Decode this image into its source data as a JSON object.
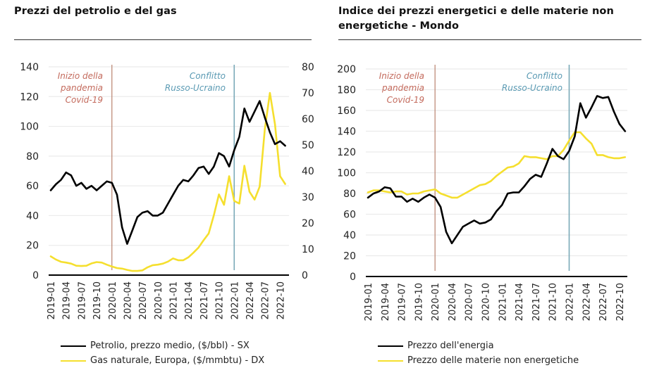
{
  "colors": {
    "oil": "#000000",
    "gas": "#f5df2e",
    "energy": "#000000",
    "non_energy": "#f5df2e",
    "covid_line": "#b9826e",
    "covid_text": "#c36a5c",
    "conflict_line": "#7aa9b8",
    "conflict_text": "#5a9ab3",
    "grid": "#ebebeb",
    "axis": "#000000"
  },
  "chart_data": [
    {
      "type": "line",
      "title": "Prezzi del petrolio e del gas",
      "xlabel": "",
      "ylabel": "",
      "ylim": [
        0,
        140
      ],
      "ylim_right": [
        0,
        80
      ],
      "yticks": [
        0,
        20,
        40,
        60,
        80,
        100,
        120,
        140
      ],
      "yticks_right": [
        0,
        10,
        20,
        30,
        40,
        50,
        60,
        70,
        80
      ],
      "grid": true,
      "legend_position": "bottom",
      "x_tick_labels": [
        "2019-01",
        "2019-04",
        "2019-07",
        "2019-10",
        "2020-01",
        "2020-04",
        "2020-07",
        "2020-10",
        "2021-01",
        "2021-04",
        "2021-07",
        "2021-10",
        "2022-01",
        "2022-04",
        "2022-07",
        "2022-10"
      ],
      "annotations": [
        {
          "text": [
            "Inizio della",
            "pandemia",
            "Covid-19"
          ],
          "x": "2020-01",
          "kind": "covid"
        },
        {
          "text": [
            "Conflitto",
            "Russo-Ucraino"
          ],
          "x": "2022-01",
          "kind": "conflict"
        }
      ],
      "series": [
        {
          "name": "Petrolio, prezzo medio, ($/bbl) - SX",
          "axis": "left",
          "color_key": "oil",
          "values": [
            57,
            61,
            64,
            69,
            67,
            60,
            62,
            58,
            60,
            57,
            60,
            63,
            62,
            54,
            32,
            21,
            30,
            39,
            42,
            43,
            40,
            40,
            42,
            48,
            54,
            60,
            64,
            63,
            67,
            72,
            73,
            68,
            73,
            82,
            80,
            73,
            84,
            93,
            112,
            103,
            110,
            117,
            106,
            96,
            88,
            90,
            87
          ]
        },
        {
          "name": "Gas naturale, Europa, ($/mmbtu) - DX",
          "axis": "right",
          "color_key": "gas",
          "values": [
            7.2,
            6.0,
            5.1,
            4.8,
            4.4,
            3.6,
            3.5,
            3.6,
            4.5,
            5.0,
            4.8,
            4.0,
            3.3,
            2.7,
            2.5,
            2.0,
            1.6,
            1.6,
            1.8,
            3.0,
            3.8,
            4.0,
            4.4,
            5.2,
            6.4,
            5.7,
            5.7,
            6.8,
            8.6,
            10.6,
            13.4,
            16.0,
            23.0,
            31.0,
            27.0,
            38.0,
            28.5,
            27.5,
            42.0,
            32.0,
            29.0,
            34.0,
            56.0,
            70.0,
            58.0,
            38.0,
            35.0
          ]
        }
      ]
    },
    {
      "type": "line",
      "title": "Indice dei prezzi energetici e delle materie non energetiche - Mondo",
      "xlabel": "",
      "ylabel": "",
      "ylim": [
        0,
        200
      ],
      "yticks": [
        0,
        20,
        40,
        60,
        80,
        100,
        120,
        140,
        160,
        180,
        200
      ],
      "grid": true,
      "legend_position": "bottom",
      "x_tick_labels": [
        "2019-01",
        "2019-04",
        "2019-07",
        "2019-10",
        "2020-01",
        "2020-04",
        "2020-07",
        "2020-10",
        "2021-01",
        "2021-04",
        "2021-07",
        "2021-10",
        "2022-01",
        "2022-04",
        "2022-07",
        "2022-10"
      ],
      "annotations": [
        {
          "text": [
            "Inizio della",
            "pandemia",
            "Covid-19"
          ],
          "x": "2020-01",
          "kind": "covid"
        },
        {
          "text": [
            "Conflitto",
            "Russo-Ucraino"
          ],
          "x": "2022-01",
          "kind": "conflict"
        }
      ],
      "series": [
        {
          "name": "Prezzo dell'energia",
          "color_key": "energy",
          "values": [
            76,
            80,
            82,
            86,
            85,
            77,
            77,
            72,
            75,
            72,
            76,
            79,
            76,
            67,
            43,
            32,
            40,
            48,
            51,
            54,
            51,
            52,
            55,
            63,
            69,
            80,
            81,
            81,
            87,
            94,
            98,
            96,
            109,
            123,
            116,
            113,
            121,
            135,
            167,
            153,
            163,
            174,
            172,
            173,
            159,
            147,
            140
          ]
        },
        {
          "name": "Prezzo delle materie non energetiche",
          "color_key": "non_energy",
          "values": [
            81,
            83,
            83,
            82,
            81,
            82,
            82,
            79,
            80,
            80,
            82,
            83,
            84,
            80,
            78,
            76,
            76,
            79,
            82,
            85,
            88,
            89,
            92,
            97,
            101,
            105,
            106,
            109,
            116,
            115,
            115,
            114,
            113,
            116,
            116,
            122,
            131,
            139,
            139,
            133,
            128,
            117,
            117,
            115,
            114,
            114,
            115
          ]
        }
      ]
    }
  ]
}
